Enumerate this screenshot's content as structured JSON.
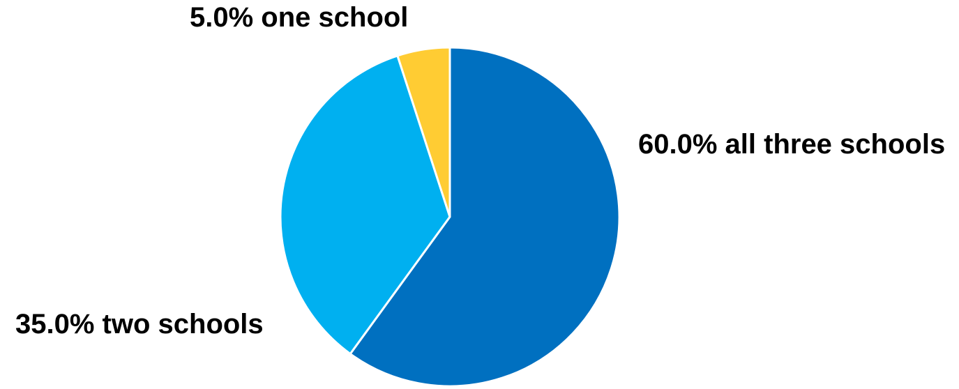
{
  "chart_data": {
    "type": "pie",
    "title": "",
    "start_angle_deg": 0,
    "direction": "clockwise",
    "slices": [
      {
        "label": "all three schools",
        "value": 60.0,
        "value_text": "60.0%",
        "label_text": "60.0% all three schools",
        "color": "#0070C0"
      },
      {
        "label": "two schools",
        "value": 35.0,
        "value_text": "35.0%",
        "label_text": "35.0% two schools",
        "color": "#00B0F0"
      },
      {
        "label": "one school",
        "value": 5.0,
        "value_text": "5.0%",
        "label_text": "5.0% one school",
        "color": "#FFCC33"
      }
    ],
    "legend": "none",
    "separator_color": "#ffffff"
  }
}
